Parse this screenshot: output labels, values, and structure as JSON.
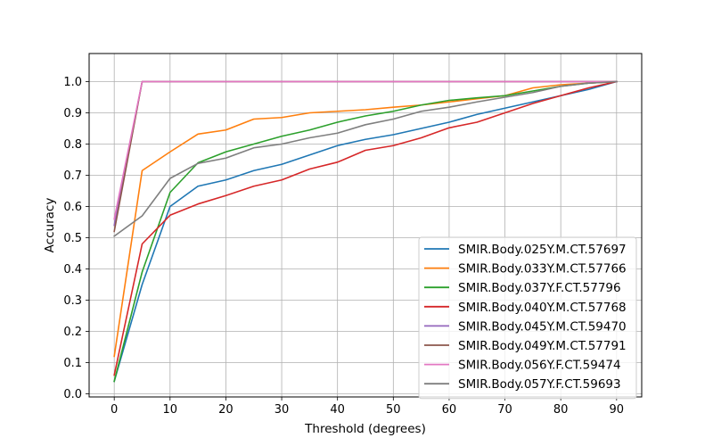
{
  "chart_data": {
    "type": "line",
    "title": "",
    "xlabel": "Threshold (degrees)",
    "ylabel": "Accuracy",
    "xlim": [
      -4.5,
      94.5
    ],
    "ylim": [
      -0.01,
      1.09
    ],
    "xticks": [
      0,
      10,
      20,
      30,
      40,
      50,
      60,
      70,
      80,
      90
    ],
    "yticks": [
      0.0,
      0.1,
      0.2,
      0.3,
      0.4,
      0.5,
      0.6,
      0.7,
      0.8,
      0.9,
      1.0
    ],
    "xtick_labels": [
      "0",
      "10",
      "20",
      "30",
      "40",
      "50",
      "60",
      "70",
      "80",
      "90"
    ],
    "ytick_labels": [
      "0.0",
      "0.1",
      "0.2",
      "0.3",
      "0.4",
      "0.5",
      "0.6",
      "0.7",
      "0.8",
      "0.9",
      "1.0"
    ],
    "grid": true,
    "legend_position": "lower-right",
    "x": [
      0,
      5,
      10,
      15,
      20,
      25,
      30,
      35,
      40,
      45,
      50,
      55,
      60,
      65,
      70,
      75,
      80,
      85,
      90
    ],
    "series": [
      {
        "name": "SMIR.Body.025Y.M.CT.57697",
        "color": "#1f77b4",
        "values": [
          0.04,
          0.35,
          0.6,
          0.665,
          0.685,
          0.715,
          0.735,
          0.765,
          0.795,
          0.815,
          0.83,
          0.85,
          0.87,
          0.895,
          0.915,
          0.935,
          0.955,
          0.975,
          1.0
        ]
      },
      {
        "name": "SMIR.Body.033Y.M.CT.57766",
        "color": "#ff7f0e",
        "values": [
          0.12,
          0.715,
          0.775,
          0.832,
          0.845,
          0.88,
          0.885,
          0.9,
          0.905,
          0.91,
          0.918,
          0.925,
          0.935,
          0.945,
          0.955,
          0.98,
          0.99,
          0.995,
          1.0
        ]
      },
      {
        "name": "SMIR.Body.037Y.F.CT.57796",
        "color": "#2ca02c",
        "values": [
          0.04,
          0.39,
          0.645,
          0.74,
          0.775,
          0.8,
          0.825,
          0.845,
          0.87,
          0.89,
          0.905,
          0.925,
          0.94,
          0.948,
          0.955,
          0.97,
          0.985,
          0.995,
          1.0
        ]
      },
      {
        "name": "SMIR.Body.040Y.M.CT.57768",
        "color": "#d62728",
        "values": [
          0.06,
          0.48,
          0.572,
          0.608,
          0.635,
          0.665,
          0.685,
          0.72,
          0.742,
          0.78,
          0.795,
          0.82,
          0.852,
          0.87,
          0.9,
          0.93,
          0.955,
          0.98,
          1.0
        ]
      },
      {
        "name": "SMIR.Body.045Y.M.CT.59470",
        "color": "#9467bd",
        "values": [
          0.54,
          1.0,
          1.0,
          1.0,
          1.0,
          1.0,
          1.0,
          1.0,
          1.0,
          1.0,
          1.0,
          1.0,
          1.0,
          1.0,
          1.0,
          1.0,
          1.0,
          1.0,
          1.0
        ]
      },
      {
        "name": "SMIR.Body.049Y.M.CT.57791",
        "color": "#8c564b",
        "values": [
          0.52,
          1.0,
          1.0,
          1.0,
          1.0,
          1.0,
          1.0,
          1.0,
          1.0,
          1.0,
          1.0,
          1.0,
          1.0,
          1.0,
          1.0,
          1.0,
          1.0,
          1.0,
          1.0
        ]
      },
      {
        "name": "SMIR.Body.056Y.F.CT.59474",
        "color": "#e377c2",
        "values": [
          0.56,
          1.0,
          1.0,
          1.0,
          1.0,
          1.0,
          1.0,
          1.0,
          1.0,
          1.0,
          1.0,
          1.0,
          1.0,
          1.0,
          1.0,
          1.0,
          1.0,
          1.0,
          1.0
        ]
      },
      {
        "name": "SMIR.Body.057Y.F.CT.59693",
        "color": "#7f7f7f",
        "values": [
          0.505,
          0.57,
          0.69,
          0.738,
          0.755,
          0.788,
          0.8,
          0.82,
          0.835,
          0.862,
          0.88,
          0.905,
          0.918,
          0.935,
          0.95,
          0.965,
          0.985,
          0.995,
          1.0
        ]
      }
    ]
  }
}
